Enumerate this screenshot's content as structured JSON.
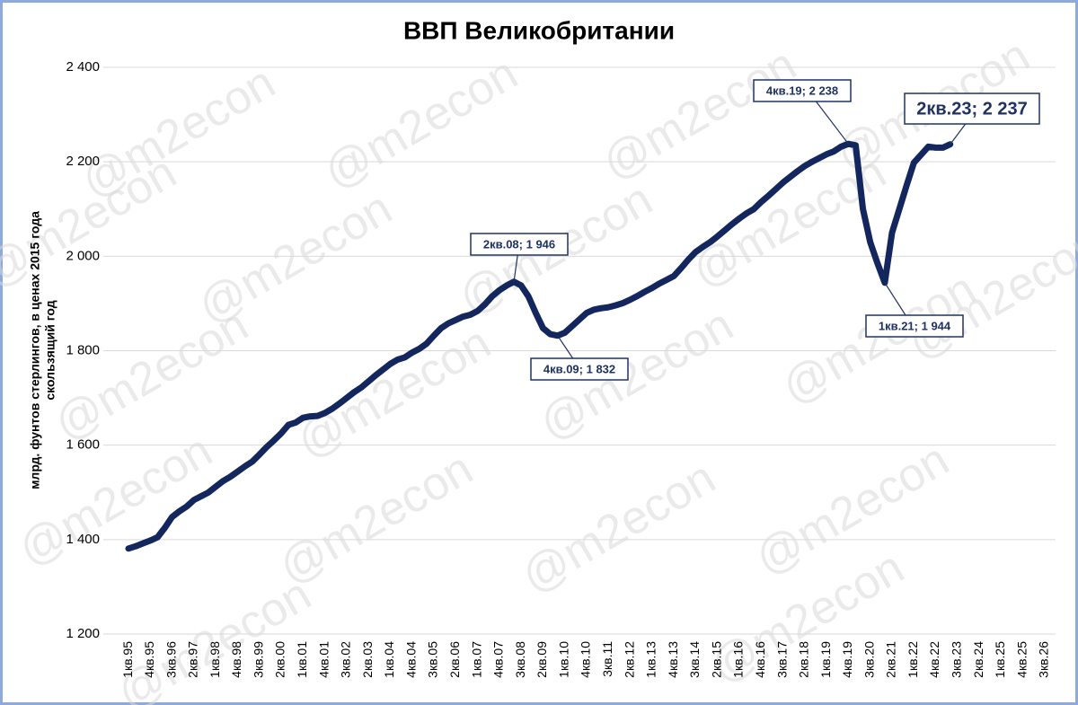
{
  "chart_data": {
    "type": "line",
    "title": "ВВП Великобритании",
    "y_label": [
      "млрд. фунтов стерлингов, в ценах 2015 года",
      "скользящий год"
    ],
    "watermark": "@m2econ",
    "color": "#13275e",
    "grid": true,
    "ylim": [
      1200,
      2400
    ],
    "yticks": [
      {
        "value": 1200,
        "label": "1 200"
      },
      {
        "value": 1400,
        "label": "1 400"
      },
      {
        "value": 1600,
        "label": "1 600"
      },
      {
        "value": 1800,
        "label": "1 800"
      },
      {
        "value": 2000,
        "label": "2 000"
      },
      {
        "value": 2200,
        "label": "2 200"
      },
      {
        "value": 2400,
        "label": "2 400"
      }
    ],
    "categories": [
      "1кв.95",
      null,
      null,
      "4кв.95",
      null,
      null,
      "3кв.96",
      null,
      null,
      "2кв.97",
      null,
      null,
      "1кв.98",
      null,
      null,
      "4кв.98",
      null,
      null,
      "3кв.99",
      null,
      null,
      "2кв.00",
      null,
      null,
      "1кв.01",
      null,
      null,
      "4кв.01",
      null,
      null,
      "3кв.02",
      null,
      null,
      "2кв.03",
      null,
      null,
      "1кв.04",
      null,
      null,
      "4кв.04",
      null,
      null,
      "3кв.05",
      null,
      null,
      "2кв.06",
      null,
      null,
      "1кв.07",
      null,
      null,
      "4кв.07",
      null,
      null,
      "3кв.08",
      null,
      null,
      "2кв.09",
      null,
      null,
      "1кв.10",
      null,
      null,
      "4кв.10",
      null,
      null,
      "3кв.11",
      null,
      null,
      "2кв.12",
      null,
      null,
      "1кв.13",
      null,
      null,
      "4кв.13",
      null,
      null,
      "3кв.14",
      null,
      null,
      "2кв.15",
      null,
      null,
      "1кв.16",
      null,
      null,
      "4кв.16",
      null,
      null,
      "3кв.17",
      null,
      null,
      "2кв.18",
      null,
      null,
      "1кв.19",
      null,
      null,
      "4кв.19",
      null,
      null,
      "3кв.20",
      null,
      null,
      "2кв.21",
      null,
      null,
      "1кв.22",
      null,
      null,
      "4кв.22",
      null,
      null,
      "3кв.23",
      null,
      null,
      "2кв.24",
      null,
      null,
      "1кв.25",
      null,
      null,
      "4кв.25",
      null,
      null,
      "3кв.26"
    ],
    "values": [
      1381,
      1386,
      1392,
      1398,
      1405,
      1425,
      1448,
      1460,
      1470,
      1484,
      1492,
      1500,
      1512,
      1524,
      1533,
      1544,
      1555,
      1565,
      1580,
      1596,
      1610,
      1625,
      1643,
      1648,
      1658,
      1661,
      1662,
      1668,
      1677,
      1688,
      1700,
      1712,
      1722,
      1735,
      1748,
      1760,
      1772,
      1781,
      1786,
      1796,
      1804,
      1815,
      1832,
      1848,
      1858,
      1865,
      1872,
      1876,
      1884,
      1898,
      1915,
      1928,
      1938,
      1946,
      1938,
      1915,
      1880,
      1848,
      1835,
      1832,
      1838,
      1852,
      1866,
      1880,
      1887,
      1890,
      1892,
      1896,
      1901,
      1908,
      1916,
      1925,
      1933,
      1942,
      1950,
      1958,
      1975,
      1993,
      2009,
      2020,
      2030,
      2042,
      2055,
      2068,
      2080,
      2091,
      2100,
      2115,
      2128,
      2142,
      2156,
      2168,
      2180,
      2191,
      2200,
      2208,
      2216,
      2222,
      2232,
      2238,
      2235,
      2100,
      2030,
      1985,
      1944,
      2050,
      2100,
      2150,
      2198,
      2215,
      2232,
      2230,
      2230,
      2237,
      null,
      null,
      null,
      null,
      null,
      null,
      null,
      null,
      null,
      null,
      null,
      null,
      null
    ],
    "annotations": [
      "2кв.08;  1 946",
      "4кв.09;  1 832",
      "4кв.19;  2 238",
      "1кв.21;  1 944",
      "2кв.23;  2 237"
    ]
  }
}
